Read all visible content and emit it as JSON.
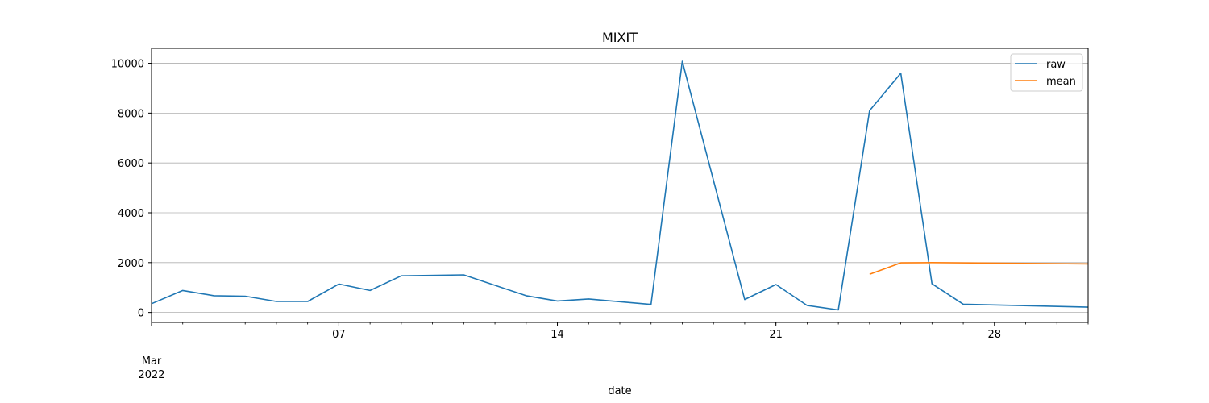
{
  "chart_data": {
    "type": "line",
    "title": "MIXIT",
    "xlabel": "date",
    "ylabel": "",
    "xlim": [
      "2022-03-01",
      "2022-03-31"
    ],
    "ylim": [
      -400,
      10600
    ],
    "grid": "y",
    "legend_position": "top-right",
    "x_ticks": [
      {
        "date": "2022-03-01",
        "label": "Mar",
        "label2": "2022"
      },
      {
        "date": "2022-03-07",
        "label": "07"
      },
      {
        "date": "2022-03-14",
        "label": "14"
      },
      {
        "date": "2022-03-21",
        "label": "21"
      },
      {
        "date": "2022-03-28",
        "label": "28"
      }
    ],
    "y_ticks": [
      0,
      2000,
      4000,
      6000,
      8000,
      10000
    ],
    "y_tick_labels": [
      "0",
      "2000",
      "4000",
      "6000",
      "8000",
      "10000"
    ],
    "series": [
      {
        "name": "raw",
        "color": "#1f77b4",
        "points": [
          [
            "2022-03-01",
            350
          ],
          [
            "2022-03-02",
            880
          ],
          [
            "2022-03-03",
            670
          ],
          [
            "2022-03-04",
            650
          ],
          [
            "2022-03-05",
            440
          ],
          [
            "2022-03-06",
            440
          ],
          [
            "2022-03-07",
            1140
          ],
          [
            "2022-03-08",
            880
          ],
          [
            "2022-03-09",
            1470
          ],
          [
            "2022-03-11",
            1510
          ],
          [
            "2022-03-13",
            670
          ],
          [
            "2022-03-14",
            460
          ],
          [
            "2022-03-15",
            540
          ],
          [
            "2022-03-17",
            320
          ],
          [
            "2022-03-18",
            10080
          ],
          [
            "2022-03-20",
            520
          ],
          [
            "2022-03-21",
            1120
          ],
          [
            "2022-03-22",
            280
          ],
          [
            "2022-03-23",
            100
          ],
          [
            "2022-03-24",
            8100
          ],
          [
            "2022-03-25",
            9600
          ],
          [
            "2022-03-26",
            1150
          ],
          [
            "2022-03-27",
            330
          ],
          [
            "2022-03-31",
            210
          ]
        ]
      },
      {
        "name": "mean",
        "color": "#ff7f0e",
        "points": [
          [
            "2022-03-24",
            1530
          ],
          [
            "2022-03-25",
            1990
          ],
          [
            "2022-03-26",
            2000
          ],
          [
            "2022-03-31",
            1950
          ]
        ]
      }
    ]
  }
}
